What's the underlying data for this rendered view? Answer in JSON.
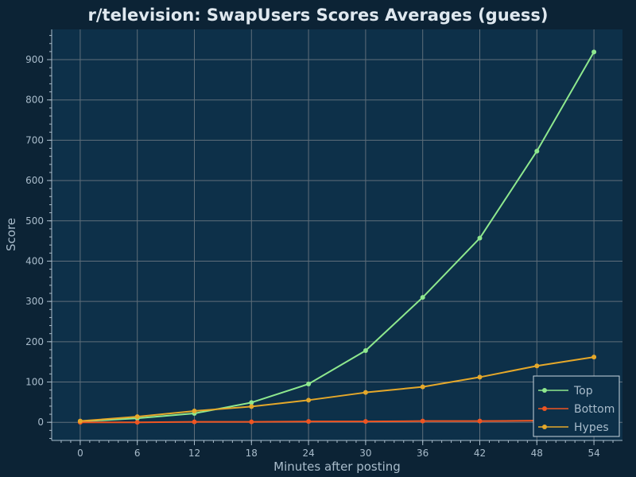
{
  "chart_data": {
    "type": "line",
    "title": "r/television: SwapUsers Scores Averages (guess)",
    "xlabel": "Minutes after posting",
    "ylabel": "Score",
    "x": [
      0,
      6,
      12,
      18,
      24,
      30,
      36,
      42,
      48,
      54
    ],
    "xlim": [
      -3,
      57
    ],
    "ylim": [
      -45,
      975
    ],
    "x_ticks": [
      0,
      6,
      12,
      18,
      24,
      30,
      36,
      42,
      48,
      54
    ],
    "y_ticks": [
      0,
      100,
      200,
      300,
      400,
      500,
      600,
      700,
      800,
      900
    ],
    "grid": true,
    "legend_position": "bottom-right",
    "series": [
      {
        "name": "Top",
        "color": "#8ee88e",
        "values": [
          2,
          10,
          22,
          49,
          95,
          178,
          310,
          457,
          673,
          919
        ]
      },
      {
        "name": "Bottom",
        "color": "#ee5522",
        "values": [
          0,
          0,
          1,
          1,
          2,
          2,
          3,
          3,
          4,
          4
        ]
      },
      {
        "name": "Hypes",
        "color": "#e5a82a",
        "values": [
          3,
          14,
          28,
          39,
          55,
          74,
          88,
          112,
          140,
          162
        ]
      }
    ]
  }
}
